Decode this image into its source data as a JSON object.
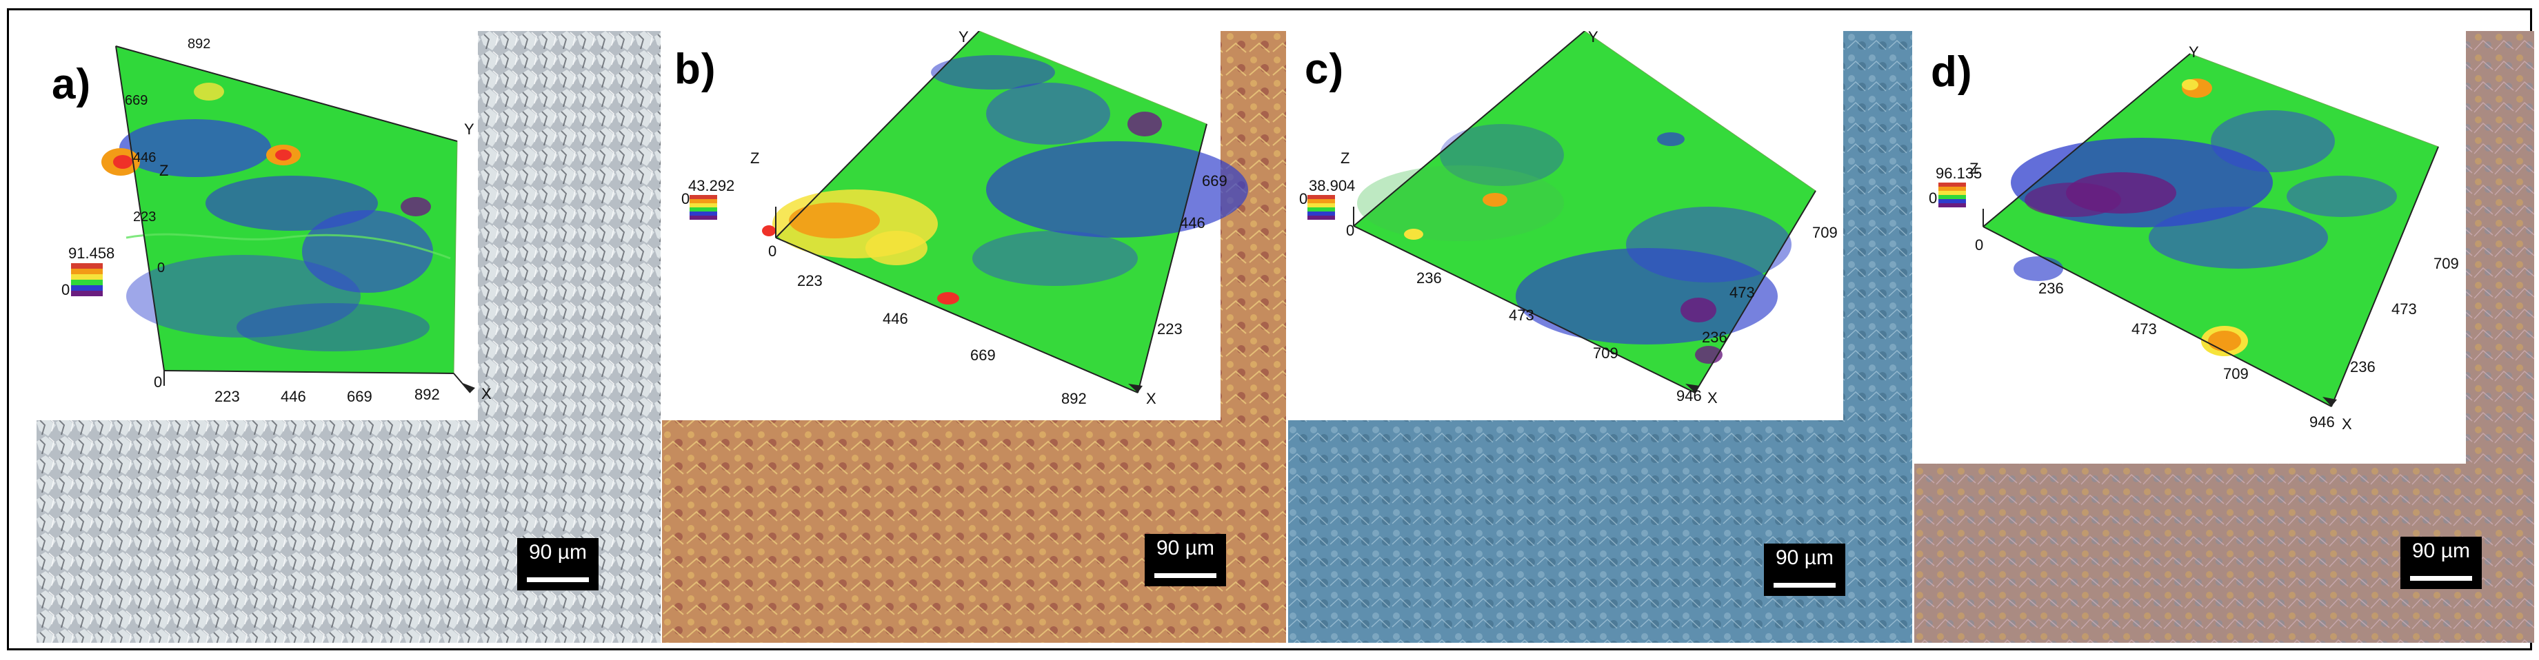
{
  "panels": [
    {
      "label": "a)",
      "photo_base": "#aeb3b8",
      "z_max": "91.458",
      "z_min": "0",
      "x_ticks": [
        "0",
        "223",
        "446",
        "669",
        "892"
      ],
      "y_ticks": [
        "892",
        "669",
        "446",
        "223",
        "0"
      ],
      "x_axis": "X",
      "y_axis": "Y",
      "z_axis": "Z",
      "scale": "90 µm"
    },
    {
      "label": "b)",
      "photo_base": "#a86040",
      "z_max": "43.292",
      "z_min": "0",
      "x_ticks": [
        "223",
        "446",
        "669",
        "892"
      ],
      "y_ticks": [
        "223",
        "446",
        "669"
      ],
      "x_axis": "X",
      "y_axis": "Y",
      "z_axis": "Z",
      "origin": "0",
      "scale": "90 µm"
    },
    {
      "label": "c)",
      "photo_base": "#5f8fb0",
      "z_max": "38.904",
      "z_min": "0",
      "x_ticks": [
        "236",
        "473",
        "709",
        "946"
      ],
      "y_ticks": [
        "236",
        "473",
        "709"
      ],
      "x_axis": "X",
      "y_axis": "Y",
      "z_axis": "Z",
      "origin": "0",
      "scale": "90 µm"
    },
    {
      "label": "d)",
      "photo_base": "#a68d83",
      "z_max": "96.135",
      "z_min": "0",
      "x_ticks": [
        "236",
        "473",
        "709",
        "946"
      ],
      "y_ticks": [
        "236",
        "473",
        "709"
      ],
      "x_axis": "X",
      "y_axis": "Y",
      "z_axis": "Z",
      "origin": "0",
      "scale": "90 µm"
    }
  ],
  "colors": {
    "surface_green": "#32d93a",
    "surface_blue": "#2d3dcc",
    "surface_purple": "#6a1d7f",
    "surface_yellow": "#f6e33b",
    "surface_orange": "#f39b16"
  }
}
